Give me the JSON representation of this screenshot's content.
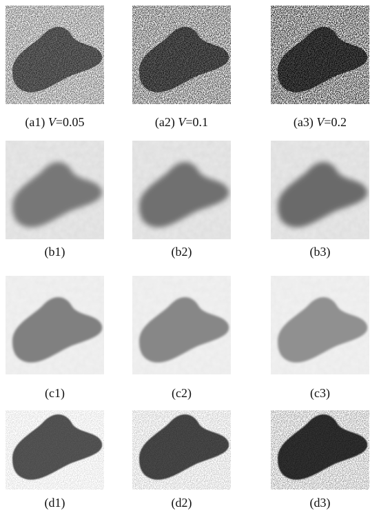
{
  "figure": {
    "rows": [
      {
        "captions": [
          {
            "label": "(a1)",
            "var": "V",
            "rest": "=0.05"
          },
          {
            "label": "(a2)",
            "var": "V",
            "rest": "=0.1"
          },
          {
            "label": "(a3)",
            "var": "V",
            "rest": "=0.2"
          }
        ]
      },
      {
        "captions": [
          {
            "label": "(b1)"
          },
          {
            "label": "(b2)"
          },
          {
            "label": "(b3)"
          }
        ]
      },
      {
        "captions": [
          {
            "label": "(c1)"
          },
          {
            "label": "(c2)"
          },
          {
            "label": "(c3)"
          }
        ]
      },
      {
        "captions": [
          {
            "label": "(d1)"
          },
          {
            "label": "(d2)"
          },
          {
            "label": "(d3)"
          }
        ]
      }
    ]
  }
}
